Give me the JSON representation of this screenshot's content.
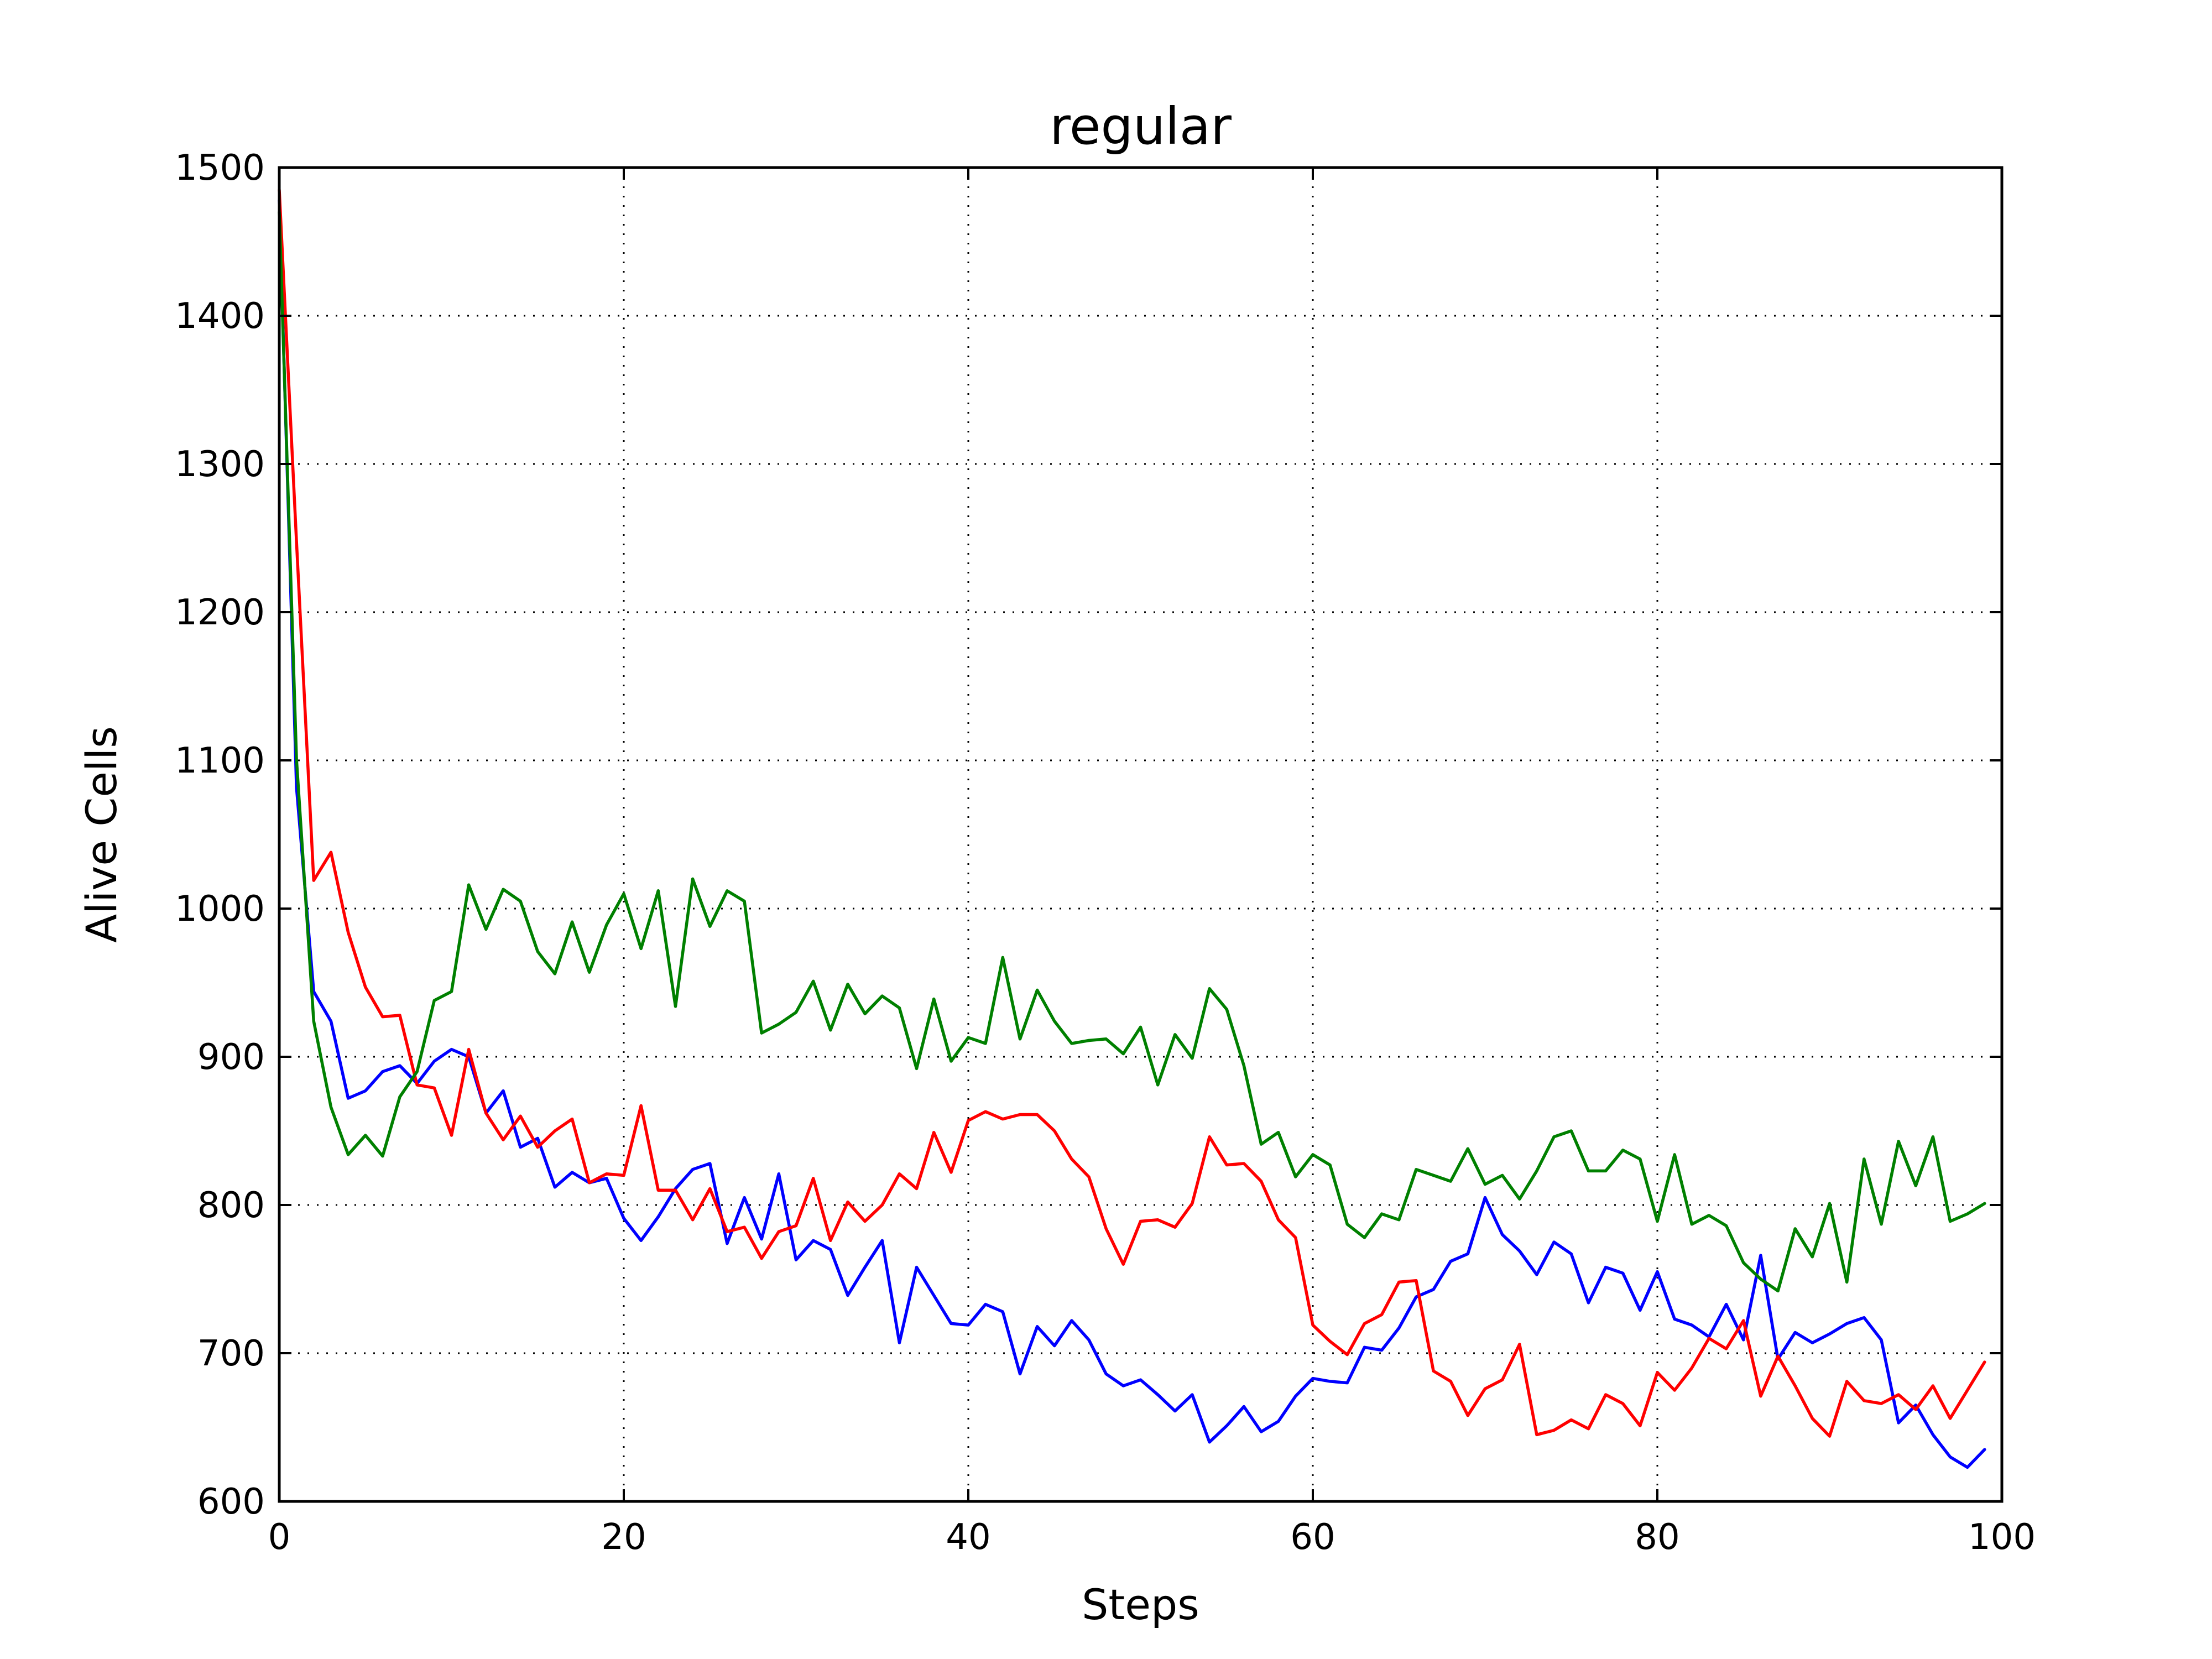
{
  "chart_data": {
    "type": "line",
    "title": "regular",
    "xlabel": "Steps",
    "ylabel": "Alive Cells",
    "xlim": [
      0,
      100
    ],
    "ylim": [
      600,
      1500
    ],
    "xticks": [
      0,
      20,
      40,
      60,
      80,
      100
    ],
    "yticks": [
      600,
      700,
      800,
      900,
      1000,
      1100,
      1200,
      1300,
      1400,
      1500
    ],
    "grid": true,
    "legend": "none",
    "series": [
      {
        "color": "#0000ff",
        "x": [
          0,
          1,
          2,
          3,
          4,
          5,
          6,
          7,
          8,
          9,
          10,
          11,
          12,
          13,
          14,
          15,
          16,
          17,
          18,
          19,
          20,
          21,
          22,
          23,
          24,
          25,
          26,
          27,
          28,
          29,
          30,
          31,
          32,
          33,
          34,
          35,
          36,
          37,
          38,
          39,
          40,
          41,
          42,
          43,
          44,
          45,
          46,
          47,
          48,
          49,
          50,
          51,
          52,
          53,
          54,
          55,
          56,
          57,
          58,
          59,
          60,
          61,
          62,
          63,
          64,
          65,
          66,
          67,
          68,
          69,
          70,
          71,
          72,
          73,
          74,
          75,
          76,
          77,
          78,
          79,
          80,
          81,
          82,
          83,
          84,
          85,
          86,
          87,
          88,
          89,
          90,
          91,
          92,
          93,
          94,
          95,
          96,
          97,
          98,
          99
        ],
        "y": [
          1478,
          1082,
          944,
          924,
          872,
          877,
          890,
          894,
          882,
          897,
          905,
          900,
          862,
          877,
          839,
          845,
          812,
          822,
          815,
          818,
          791,
          776,
          792,
          811,
          824,
          828,
          774,
          805,
          777,
          821,
          763,
          776,
          770,
          739,
          758,
          776,
          707,
          758,
          739,
          720,
          719,
          733,
          728,
          686,
          718,
          705,
          722,
          709,
          686,
          678,
          682,
          672,
          661,
          672,
          640,
          651,
          664,
          647,
          654,
          671,
          683,
          681,
          680,
          704,
          702,
          717,
          738,
          743,
          762,
          767,
          805,
          780,
          769,
          753,
          775,
          767,
          734,
          758,
          754,
          729,
          755,
          723,
          719,
          711,
          733,
          709,
          766,
          696,
          714,
          707,
          713,
          720,
          724,
          709,
          653,
          665,
          645,
          630,
          623,
          635
        ]
      },
      {
        "color": "#ff0000",
        "x": [
          0,
          1,
          2,
          3,
          4,
          5,
          6,
          7,
          8,
          9,
          10,
          11,
          12,
          13,
          14,
          15,
          16,
          17,
          18,
          19,
          20,
          21,
          22,
          23,
          24,
          25,
          26,
          27,
          28,
          29,
          30,
          31,
          32,
          33,
          34,
          35,
          36,
          37,
          38,
          39,
          40,
          41,
          42,
          43,
          44,
          45,
          46,
          47,
          48,
          49,
          50,
          51,
          52,
          53,
          54,
          55,
          56,
          57,
          58,
          59,
          60,
          61,
          62,
          63,
          64,
          65,
          66,
          67,
          68,
          69,
          70,
          71,
          72,
          73,
          74,
          75,
          76,
          77,
          78,
          79,
          80,
          81,
          82,
          83,
          84,
          85,
          86,
          87,
          88,
          89,
          90,
          91,
          92,
          93,
          94,
          95,
          96,
          97,
          98,
          99
        ],
        "y": [
          1485,
          1248,
          1019,
          1038,
          984,
          947,
          927,
          928,
          881,
          879,
          847,
          905,
          862,
          844,
          860,
          839,
          850,
          858,
          815,
          821,
          820,
          867,
          810,
          810,
          790,
          811,
          782,
          785,
          764,
          782,
          786,
          818,
          776,
          802,
          789,
          800,
          821,
          811,
          849,
          822,
          857,
          863,
          858,
          861,
          861,
          850,
          831,
          819,
          784,
          760,
          789,
          790,
          785,
          801,
          846,
          827,
          828,
          816,
          790,
          778,
          719,
          708,
          699,
          720,
          726,
          748,
          749,
          688,
          681,
          658,
          676,
          682,
          706,
          645,
          648,
          655,
          649,
          672,
          666,
          651,
          687,
          675,
          690,
          710,
          703,
          722,
          671,
          698,
          678,
          656,
          644,
          681,
          668,
          666,
          672,
          662,
          678,
          656,
          675,
          694
        ]
      },
      {
        "color": "#008000",
        "x": [
          0,
          1,
          2,
          3,
          4,
          5,
          6,
          7,
          8,
          9,
          10,
          11,
          12,
          13,
          14,
          15,
          16,
          17,
          18,
          19,
          20,
          21,
          22,
          23,
          24,
          25,
          26,
          27,
          28,
          29,
          30,
          31,
          32,
          33,
          34,
          35,
          36,
          37,
          38,
          39,
          40,
          41,
          42,
          43,
          44,
          45,
          46,
          47,
          48,
          49,
          50,
          51,
          52,
          53,
          54,
          55,
          56,
          57,
          58,
          59,
          60,
          61,
          62,
          63,
          64,
          65,
          66,
          67,
          68,
          69,
          70,
          71,
          72,
          73,
          74,
          75,
          76,
          77,
          78,
          79,
          80,
          81,
          82,
          83,
          84,
          85,
          86,
          87,
          88,
          89,
          90,
          91,
          92,
          93,
          94,
          95,
          96,
          97,
          98,
          99
        ],
        "y": [
          1470,
          1101,
          924,
          866,
          834,
          847,
          833,
          873,
          890,
          938,
          944,
          1016,
          986,
          1013,
          1005,
          971,
          956,
          991,
          957,
          989,
          1010,
          973,
          1012,
          934,
          1020,
          988,
          1012,
          1005,
          916,
          922,
          930,
          951,
          918,
          949,
          929,
          941,
          933,
          892,
          939,
          897,
          913,
          909,
          967,
          912,
          945,
          924,
          909,
          911,
          912,
          902,
          920,
          881,
          915,
          899,
          946,
          932,
          894,
          841,
          849,
          819,
          834,
          827,
          787,
          778,
          794,
          790,
          824,
          820,
          816,
          838,
          814,
          820,
          804,
          823,
          846,
          850,
          823,
          823,
          837,
          831,
          789,
          834,
          787,
          793,
          786,
          761,
          750,
          742,
          784,
          765,
          801,
          748,
          831,
          787,
          843,
          813,
          846,
          789,
          794,
          801
        ]
      }
    ]
  }
}
